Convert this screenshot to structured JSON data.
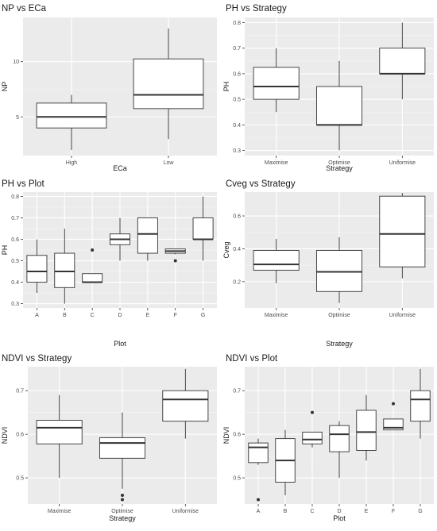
{
  "chart_data": [
    {
      "type": "box",
      "title": "NP vs ECa",
      "xlabel": "ECa",
      "ylabel": "NP",
      "ylim": [
        1.5,
        14
      ],
      "yticks": [
        5,
        10
      ],
      "ytick_labels": [
        "5",
        "10"
      ],
      "categories": [
        "High",
        "Low"
      ],
      "boxes": [
        {
          "cat": "High",
          "min": 2,
          "q1": 4,
          "median": 5,
          "q3": 6.25,
          "max": 7,
          "outliers": []
        },
        {
          "cat": "Low",
          "min": 3,
          "q1": 5.75,
          "median": 7,
          "q3": 10.25,
          "max": 13,
          "outliers": []
        }
      ]
    },
    {
      "type": "box",
      "title": "PH vs Strategy",
      "xlabel": "Strategy",
      "ylabel": "PH",
      "ylim": [
        0.28,
        0.82
      ],
      "yticks": [
        0.3,
        0.4,
        0.5,
        0.6,
        0.7,
        0.8
      ],
      "ytick_labels": [
        "0.3",
        "0.4",
        "0.5",
        "0.6",
        "0.7",
        "0.8"
      ],
      "categories": [
        "Maximise",
        "Optimise",
        "Uniformise"
      ],
      "boxes": [
        {
          "cat": "Maximise",
          "min": 0.45,
          "q1": 0.5,
          "median": 0.55,
          "q3": 0.625,
          "max": 0.7,
          "outliers": []
        },
        {
          "cat": "Optimise",
          "min": 0.3,
          "q1": 0.4,
          "median": 0.4,
          "q3": 0.55,
          "max": 0.65,
          "outliers": []
        },
        {
          "cat": "Uniformise",
          "min": 0.5,
          "q1": 0.6,
          "median": 0.6,
          "q3": 0.7,
          "max": 0.8,
          "outliers": []
        }
      ]
    },
    {
      "type": "box",
      "title": "PH vs Plot",
      "xlabel": "Plot",
      "ylabel": "PH",
      "ylim": [
        0.28,
        0.82
      ],
      "yticks": [
        0.3,
        0.4,
        0.5,
        0.6,
        0.7,
        0.8
      ],
      "ytick_labels": [
        "0.3",
        "0.4",
        "0.5",
        "0.6",
        "0.7",
        "0.8"
      ],
      "categories": [
        "A",
        "B",
        "C",
        "D",
        "E",
        "F",
        "G"
      ],
      "boxes": [
        {
          "cat": "A",
          "min": 0.35,
          "q1": 0.4,
          "median": 0.45,
          "q3": 0.525,
          "max": 0.6,
          "outliers": []
        },
        {
          "cat": "B",
          "min": 0.3,
          "q1": 0.375,
          "median": 0.45,
          "q3": 0.535,
          "max": 0.65,
          "outliers": []
        },
        {
          "cat": "C",
          "min": 0.4,
          "q1": 0.4,
          "median": 0.4,
          "q3": 0.44,
          "max": 0.44,
          "outliers": [
            0.55
          ]
        },
        {
          "cat": "D",
          "min": 0.5,
          "q1": 0.575,
          "median": 0.6,
          "q3": 0.625,
          "max": 0.7,
          "outliers": []
        },
        {
          "cat": "E",
          "min": 0.5,
          "q1": 0.535,
          "median": 0.625,
          "q3": 0.7,
          "max": 0.7,
          "outliers": []
        },
        {
          "cat": "F",
          "min": 0.53,
          "q1": 0.535,
          "median": 0.545,
          "q3": 0.555,
          "max": 0.555,
          "outliers": [
            0.5
          ]
        },
        {
          "cat": "G",
          "min": 0.5,
          "q1": 0.6,
          "median": 0.6,
          "q3": 0.7,
          "max": 0.8,
          "outliers": []
        }
      ]
    },
    {
      "type": "box",
      "title": "Cveg vs Strategy",
      "xlabel": "Strategy",
      "ylabel": "Cveg",
      "ylim": [
        0.04,
        0.745
      ],
      "yticks": [
        0.2,
        0.4,
        0.6
      ],
      "ytick_labels": [
        "0.2",
        "0.4",
        "0.6"
      ],
      "categories": [
        "Maximise",
        "Optimise",
        "Uniformise"
      ],
      "boxes": [
        {
          "cat": "Maximise",
          "min": 0.19,
          "q1": 0.27,
          "median": 0.305,
          "q3": 0.39,
          "max": 0.46,
          "outliers": []
        },
        {
          "cat": "Optimise",
          "min": 0.07,
          "q1": 0.14,
          "median": 0.26,
          "q3": 0.39,
          "max": 0.47,
          "outliers": []
        },
        {
          "cat": "Uniformise",
          "min": 0.22,
          "q1": 0.29,
          "median": 0.49,
          "q3": 0.72,
          "max": 0.74,
          "outliers": []
        }
      ]
    },
    {
      "type": "box",
      "title": "NDVI vs Strategy",
      "xlabel": "Strategy",
      "ylabel": "NDVI",
      "ylim": [
        0.44,
        0.755
      ],
      "yticks": [
        0.5,
        0.6,
        0.7
      ],
      "ytick_labels": [
        "0.5",
        "0.6",
        "0.7"
      ],
      "categories": [
        "Maximise",
        "Optimise",
        "Uniformise"
      ],
      "boxes": [
        {
          "cat": "Maximise",
          "min": 0.5,
          "q1": 0.578,
          "median": 0.615,
          "q3": 0.632,
          "max": 0.69,
          "outliers": []
        },
        {
          "cat": "Optimise",
          "min": 0.475,
          "q1": 0.545,
          "median": 0.58,
          "q3": 0.592,
          "max": 0.65,
          "outliers": [
            0.46,
            0.45
          ]
        },
        {
          "cat": "Uniformise",
          "min": 0.59,
          "q1": 0.63,
          "median": 0.68,
          "q3": 0.7,
          "max": 0.75,
          "outliers": []
        }
      ]
    },
    {
      "type": "box",
      "title": "NDVI vs Plot",
      "xlabel": "Plot",
      "ylabel": "NDVI",
      "ylim": [
        0.44,
        0.755
      ],
      "yticks": [
        0.5,
        0.6,
        0.7
      ],
      "ytick_labels": [
        "0.5",
        "0.6",
        "0.7"
      ],
      "categories": [
        "A",
        "B",
        "C",
        "D",
        "E",
        "F",
        "G"
      ],
      "boxes": [
        {
          "cat": "A",
          "min": 0.53,
          "q1": 0.535,
          "median": 0.57,
          "q3": 0.58,
          "max": 0.59,
          "outliers": [
            0.45
          ]
        },
        {
          "cat": "B",
          "min": 0.46,
          "q1": 0.49,
          "median": 0.54,
          "q3": 0.59,
          "max": 0.61,
          "outliers": []
        },
        {
          "cat": "C",
          "min": 0.57,
          "q1": 0.578,
          "median": 0.588,
          "q3": 0.605,
          "max": 0.605,
          "outliers": [
            0.65
          ]
        },
        {
          "cat": "D",
          "min": 0.5,
          "q1": 0.56,
          "median": 0.6,
          "q3": 0.62,
          "max": 0.63,
          "outliers": []
        },
        {
          "cat": "E",
          "min": 0.54,
          "q1": 0.563,
          "median": 0.605,
          "q3": 0.655,
          "max": 0.69,
          "outliers": []
        },
        {
          "cat": "F",
          "min": 0.61,
          "q1": 0.61,
          "median": 0.615,
          "q3": 0.635,
          "max": 0.635,
          "outliers": [
            0.67
          ]
        },
        {
          "cat": "G",
          "min": 0.59,
          "q1": 0.63,
          "median": 0.68,
          "q3": 0.7,
          "max": 0.75,
          "outliers": []
        }
      ]
    }
  ],
  "colors": {
    "panel_bg": "#ebebeb",
    "grid_major": "#ffffff",
    "grid_minor": "#f5f5f5",
    "box_fill": "#ffffff",
    "box_stroke": "#333333",
    "text": "#1a1a1a",
    "tick_text": "#4d4d4d"
  }
}
